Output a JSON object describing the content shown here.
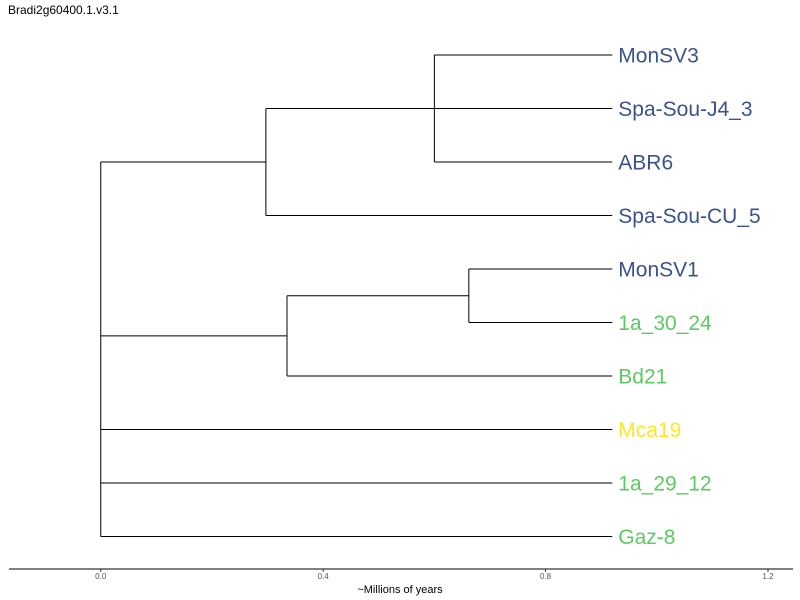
{
  "title": "Bradi2g60400.1.v3.1",
  "colors": {
    "clade_a": "#3b528b",
    "clade_b": "#5ec962",
    "clade_c": "#fde725",
    "branch": "#000000"
  },
  "tree": {
    "tips": [
      {
        "label": "MonSV3",
        "color_key": "clade_a"
      },
      {
        "label": "Spa-Sou-J4_3",
        "color_key": "clade_a"
      },
      {
        "label": "ABR6",
        "color_key": "clade_a"
      },
      {
        "label": "Spa-Sou-CU_5",
        "color_key": "clade_a"
      },
      {
        "label": "MonSV1",
        "color_key": "clade_a"
      },
      {
        "label": "1a_30_24",
        "color_key": "clade_b"
      },
      {
        "label": "Bd21",
        "color_key": "clade_b"
      },
      {
        "label": "Mca19",
        "color_key": "clade_c"
      },
      {
        "label": "1a_29_12",
        "color_key": "clade_b"
      },
      {
        "label": "Gaz-8",
        "color_key": "clade_b"
      }
    ],
    "tip_depth": 0.92,
    "internal_nodes": [
      {
        "id": "n1",
        "depth": 0.0,
        "children": [
          "n2",
          "n3",
          "t7",
          "t8",
          "t9"
        ]
      },
      {
        "id": "n2",
        "depth": 0.297,
        "children": [
          "n4",
          "t3"
        ]
      },
      {
        "id": "n4",
        "depth": 0.6,
        "children": [
          "t0",
          "t1",
          "t2"
        ]
      },
      {
        "id": "n3",
        "depth": 0.335,
        "children": [
          "n5",
          "t6"
        ]
      },
      {
        "id": "n5",
        "depth": 0.662,
        "children": [
          "t4",
          "t5"
        ]
      }
    ]
  },
  "axis": {
    "title": "~Millions of years",
    "ticks": [
      "0.0",
      "0.4",
      "0.8",
      "1.2"
    ],
    "tick_values": [
      0.0,
      0.4,
      0.8,
      1.2
    ],
    "range": [
      -0.165,
      1.245
    ]
  }
}
